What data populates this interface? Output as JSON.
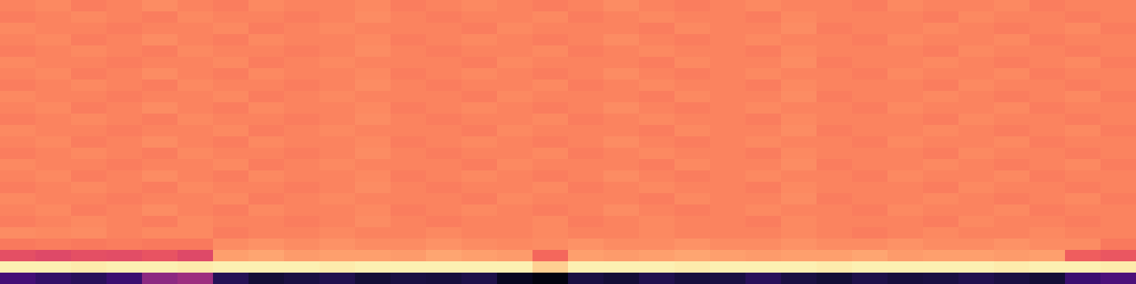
{
  "chart_data": {
    "type": "heatmap",
    "tick_labels": false,
    "zlim": [
      0,
      1
    ],
    "cells": [
      [
        0.74,
        0.75,
        0.73,
        0.74,
        0.76,
        0.74,
        0.73,
        0.75,
        0.74,
        0.74,
        0.75,
        0.73,
        0.74,
        0.75,
        0.74,
        0.73,
        0.74,
        0.76,
        0.74,
        0.73,
        0.74,
        0.75,
        0.74,
        0.74,
        0.73,
        0.75,
        0.74,
        0.74,
        0.75,
        0.73,
        0.74,
        0.74
      ],
      [
        0.73,
        0.74,
        0.75,
        0.74,
        0.73,
        0.75,
        0.74,
        0.74,
        0.73,
        0.74,
        0.76,
        0.74,
        0.73,
        0.74,
        0.74,
        0.75,
        0.73,
        0.74,
        0.75,
        0.74,
        0.74,
        0.73,
        0.75,
        0.74,
        0.74,
        0.74,
        0.73,
        0.75,
        0.74,
        0.74,
        0.73,
        0.74
      ],
      [
        0.75,
        0.74,
        0.74,
        0.73,
        0.74,
        0.74,
        0.75,
        0.73,
        0.74,
        0.75,
        0.74,
        0.74,
        0.74,
        0.73,
        0.75,
        0.74,
        0.74,
        0.74,
        0.73,
        0.75,
        0.74,
        0.74,
        0.76,
        0.73,
        0.74,
        0.74,
        0.75,
        0.74,
        0.73,
        0.74,
        0.75,
        0.73
      ],
      [
        0.74,
        0.75,
        0.73,
        0.74,
        0.76,
        0.74,
        0.73,
        0.75,
        0.74,
        0.74,
        0.75,
        0.73,
        0.74,
        0.75,
        0.74,
        0.73,
        0.74,
        0.76,
        0.74,
        0.73,
        0.74,
        0.75,
        0.74,
        0.74,
        0.73,
        0.75,
        0.74,
        0.74,
        0.75,
        0.73,
        0.74,
        0.74
      ],
      [
        0.73,
        0.74,
        0.75,
        0.74,
        0.73,
        0.75,
        0.74,
        0.74,
        0.73,
        0.74,
        0.76,
        0.74,
        0.73,
        0.74,
        0.74,
        0.75,
        0.73,
        0.74,
        0.75,
        0.74,
        0.74,
        0.73,
        0.75,
        0.74,
        0.74,
        0.74,
        0.73,
        0.75,
        0.74,
        0.74,
        0.73,
        0.74
      ],
      [
        0.75,
        0.74,
        0.74,
        0.73,
        0.74,
        0.74,
        0.75,
        0.73,
        0.74,
        0.75,
        0.74,
        0.74,
        0.74,
        0.73,
        0.75,
        0.74,
        0.74,
        0.74,
        0.73,
        0.75,
        0.74,
        0.74,
        0.76,
        0.73,
        0.74,
        0.74,
        0.75,
        0.74,
        0.73,
        0.74,
        0.75,
        0.73
      ],
      [
        0.74,
        0.75,
        0.73,
        0.74,
        0.76,
        0.74,
        0.73,
        0.75,
        0.74,
        0.74,
        0.75,
        0.73,
        0.74,
        0.75,
        0.74,
        0.73,
        0.74,
        0.76,
        0.74,
        0.73,
        0.74,
        0.75,
        0.74,
        0.74,
        0.73,
        0.75,
        0.74,
        0.74,
        0.75,
        0.73,
        0.74,
        0.74
      ],
      [
        0.73,
        0.74,
        0.75,
        0.74,
        0.73,
        0.75,
        0.74,
        0.74,
        0.73,
        0.74,
        0.76,
        0.74,
        0.73,
        0.74,
        0.74,
        0.75,
        0.73,
        0.74,
        0.75,
        0.74,
        0.74,
        0.73,
        0.75,
        0.74,
        0.74,
        0.74,
        0.73,
        0.75,
        0.74,
        0.74,
        0.73,
        0.74
      ],
      [
        0.75,
        0.74,
        0.74,
        0.73,
        0.74,
        0.74,
        0.75,
        0.73,
        0.74,
        0.75,
        0.74,
        0.74,
        0.74,
        0.73,
        0.75,
        0.74,
        0.74,
        0.74,
        0.73,
        0.75,
        0.74,
        0.74,
        0.76,
        0.73,
        0.74,
        0.74,
        0.75,
        0.74,
        0.73,
        0.74,
        0.75,
        0.73
      ],
      [
        0.74,
        0.75,
        0.73,
        0.74,
        0.76,
        0.74,
        0.73,
        0.75,
        0.74,
        0.74,
        0.75,
        0.73,
        0.74,
        0.75,
        0.74,
        0.73,
        0.74,
        0.76,
        0.74,
        0.73,
        0.74,
        0.75,
        0.74,
        0.74,
        0.73,
        0.75,
        0.74,
        0.74,
        0.75,
        0.73,
        0.74,
        0.74
      ],
      [
        0.73,
        0.74,
        0.75,
        0.74,
        0.73,
        0.75,
        0.74,
        0.74,
        0.73,
        0.74,
        0.76,
        0.74,
        0.73,
        0.74,
        0.74,
        0.75,
        0.73,
        0.74,
        0.75,
        0.74,
        0.74,
        0.73,
        0.75,
        0.74,
        0.74,
        0.74,
        0.73,
        0.75,
        0.74,
        0.74,
        0.73,
        0.74
      ],
      [
        0.75,
        0.74,
        0.74,
        0.73,
        0.74,
        0.74,
        0.75,
        0.73,
        0.74,
        0.75,
        0.74,
        0.74,
        0.74,
        0.73,
        0.75,
        0.74,
        0.74,
        0.74,
        0.73,
        0.75,
        0.74,
        0.74,
        0.76,
        0.73,
        0.74,
        0.74,
        0.75,
        0.74,
        0.73,
        0.74,
        0.75,
        0.73
      ],
      [
        0.74,
        0.75,
        0.73,
        0.74,
        0.76,
        0.74,
        0.73,
        0.75,
        0.74,
        0.74,
        0.75,
        0.73,
        0.74,
        0.75,
        0.74,
        0.73,
        0.74,
        0.76,
        0.74,
        0.73,
        0.74,
        0.75,
        0.74,
        0.74,
        0.73,
        0.75,
        0.74,
        0.74,
        0.75,
        0.73,
        0.74,
        0.74
      ],
      [
        0.73,
        0.74,
        0.75,
        0.74,
        0.73,
        0.75,
        0.74,
        0.74,
        0.73,
        0.74,
        0.76,
        0.74,
        0.73,
        0.74,
        0.74,
        0.75,
        0.73,
        0.74,
        0.75,
        0.74,
        0.74,
        0.73,
        0.75,
        0.74,
        0.74,
        0.74,
        0.73,
        0.75,
        0.74,
        0.74,
        0.73,
        0.74
      ],
      [
        0.75,
        0.74,
        0.74,
        0.73,
        0.74,
        0.74,
        0.75,
        0.73,
        0.74,
        0.75,
        0.74,
        0.74,
        0.74,
        0.73,
        0.75,
        0.74,
        0.74,
        0.74,
        0.73,
        0.75,
        0.74,
        0.74,
        0.76,
        0.73,
        0.74,
        0.74,
        0.75,
        0.74,
        0.73,
        0.74,
        0.75,
        0.73
      ],
      [
        0.74,
        0.75,
        0.73,
        0.74,
        0.76,
        0.74,
        0.73,
        0.75,
        0.74,
        0.74,
        0.75,
        0.73,
        0.74,
        0.75,
        0.74,
        0.73,
        0.74,
        0.76,
        0.74,
        0.73,
        0.74,
        0.75,
        0.74,
        0.74,
        0.73,
        0.75,
        0.74,
        0.74,
        0.75,
        0.73,
        0.74,
        0.74
      ],
      [
        0.73,
        0.74,
        0.75,
        0.74,
        0.73,
        0.75,
        0.74,
        0.74,
        0.73,
        0.74,
        0.76,
        0.74,
        0.73,
        0.74,
        0.74,
        0.75,
        0.73,
        0.74,
        0.75,
        0.74,
        0.74,
        0.73,
        0.75,
        0.74,
        0.74,
        0.74,
        0.73,
        0.75,
        0.74,
        0.74,
        0.73,
        0.74
      ],
      [
        0.75,
        0.74,
        0.74,
        0.73,
        0.74,
        0.74,
        0.75,
        0.73,
        0.74,
        0.75,
        0.74,
        0.74,
        0.74,
        0.73,
        0.75,
        0.74,
        0.74,
        0.74,
        0.73,
        0.75,
        0.74,
        0.74,
        0.76,
        0.73,
        0.74,
        0.74,
        0.75,
        0.74,
        0.73,
        0.74,
        0.75,
        0.73
      ],
      [
        0.74,
        0.75,
        0.73,
        0.74,
        0.76,
        0.74,
        0.73,
        0.75,
        0.74,
        0.74,
        0.75,
        0.73,
        0.74,
        0.75,
        0.74,
        0.73,
        0.74,
        0.76,
        0.74,
        0.73,
        0.74,
        0.75,
        0.74,
        0.74,
        0.73,
        0.75,
        0.74,
        0.74,
        0.75,
        0.73,
        0.74,
        0.74
      ],
      [
        0.73,
        0.74,
        0.75,
        0.74,
        0.73,
        0.75,
        0.74,
        0.74,
        0.73,
        0.74,
        0.76,
        0.74,
        0.73,
        0.74,
        0.74,
        0.75,
        0.73,
        0.74,
        0.75,
        0.74,
        0.74,
        0.73,
        0.75,
        0.74,
        0.74,
        0.74,
        0.73,
        0.75,
        0.74,
        0.74,
        0.73,
        0.74
      ],
      [
        0.76,
        0.75,
        0.76,
        0.74,
        0.75,
        0.75,
        0.73,
        0.74,
        0.74,
        0.75,
        0.74,
        0.74,
        0.75,
        0.74,
        0.74,
        0.75,
        0.74,
        0.74,
        0.75,
        0.74,
        0.74,
        0.74,
        0.75,
        0.74,
        0.73,
        0.74,
        0.75,
        0.74,
        0.74,
        0.75,
        0.74,
        0.74
      ],
      [
        0.72,
        0.73,
        0.72,
        0.73,
        0.72,
        0.72,
        0.76,
        0.77,
        0.76,
        0.77,
        0.76,
        0.76,
        0.77,
        0.76,
        0.75,
        0.76,
        0.77,
        0.76,
        0.76,
        0.77,
        0.76,
        0.76,
        0.77,
        0.76,
        0.76,
        0.77,
        0.76,
        0.76,
        0.77,
        0.76,
        0.76,
        0.72
      ],
      [
        0.62,
        0.6,
        0.62,
        0.61,
        0.63,
        0.6,
        0.8,
        0.81,
        0.79,
        0.8,
        0.8,
        0.79,
        0.81,
        0.8,
        0.79,
        0.68,
        0.8,
        0.79,
        0.8,
        0.81,
        0.8,
        0.79,
        0.8,
        0.8,
        0.81,
        0.79,
        0.8,
        0.8,
        0.79,
        0.8,
        0.66,
        0.64
      ],
      [
        0.97,
        0.97,
        0.96,
        0.97,
        0.97,
        0.96,
        0.97,
        0.97,
        0.97,
        0.96,
        0.97,
        0.97,
        0.97,
        0.97,
        0.97,
        0.9,
        0.97,
        0.97,
        0.97,
        0.96,
        0.97,
        0.97,
        0.97,
        0.96,
        0.97,
        0.97,
        0.97,
        0.97,
        0.96,
        0.97,
        0.97,
        0.96
      ],
      [
        0.22,
        0.18,
        0.16,
        0.2,
        0.4,
        0.44,
        0.15,
        0.1,
        0.12,
        0.14,
        0.1,
        0.12,
        0.11,
        0.13,
        0.06,
        0.03,
        0.12,
        0.1,
        0.14,
        0.11,
        0.12,
        0.16,
        0.12,
        0.1,
        0.13,
        0.11,
        0.12,
        0.14,
        0.12,
        0.1,
        0.2,
        0.24
      ]
    ]
  }
}
